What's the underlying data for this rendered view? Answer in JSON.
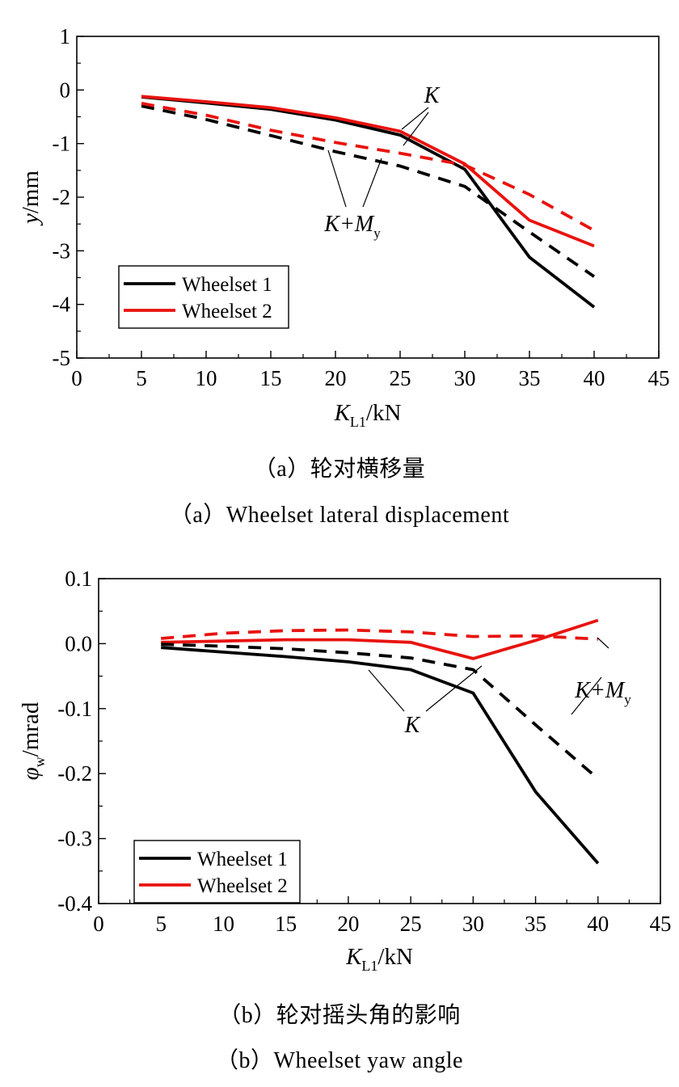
{
  "figure": {
    "captions": [
      {
        "zh": "（a）轮对横移量",
        "en": "（a）Wheelset lateral displacement"
      },
      {
        "zh": "（b）轮对摇头角的影响",
        "en": "（b）Wheelset yaw angle"
      }
    ]
  },
  "chart_data": [
    {
      "type": "line",
      "xlabel": {
        "main": "K",
        "sub": "L1",
        "unit": "/kN"
      },
      "ylabel": {
        "main": "y",
        "sub": "",
        "unit": "/mm"
      },
      "xlim": [
        0,
        45
      ],
      "ylim": [
        -5,
        1
      ],
      "xticks": [
        0,
        5,
        10,
        15,
        20,
        25,
        30,
        35,
        40,
        45
      ],
      "yticks": [
        1,
        0,
        -1,
        -2,
        -3,
        -4,
        -5
      ],
      "ytick_labels": [
        "1",
        "0",
        "-1",
        "-2",
        "-3",
        "-4",
        "-5"
      ],
      "grid": false,
      "legend_position": "bottom-left",
      "legend": [
        {
          "label": "Wheelset 1",
          "color": "#000000"
        },
        {
          "label": "Wheelset 2",
          "color": "#e8130f"
        }
      ],
      "x": [
        5,
        10,
        15,
        20,
        25,
        30,
        35,
        40
      ],
      "series": [
        {
          "wheelset": 1,
          "case": "K",
          "dashed": false,
          "color": "#000000",
          "values": [
            -0.13,
            -0.24,
            -0.36,
            -0.56,
            -0.84,
            -1.48,
            -3.12,
            -4.05
          ]
        },
        {
          "wheelset": 2,
          "case": "K",
          "dashed": false,
          "color": "#e8130f",
          "values": [
            -0.12,
            -0.22,
            -0.33,
            -0.52,
            -0.77,
            -1.38,
            -2.43,
            -2.91
          ]
        },
        {
          "wheelset": 1,
          "case": "K+My",
          "dashed": true,
          "color": "#000000",
          "values": [
            -0.3,
            -0.55,
            -0.85,
            -1.15,
            -1.42,
            -1.8,
            -2.65,
            -3.48
          ]
        },
        {
          "wheelset": 2,
          "case": "K+My",
          "dashed": true,
          "color": "#e8130f",
          "values": [
            -0.25,
            -0.47,
            -0.75,
            -0.98,
            -1.18,
            -1.4,
            -1.95,
            -2.62
          ]
        }
      ],
      "annotations": [
        {
          "main": "K",
          "sub": ""
        },
        {
          "main": "K+M",
          "sub": "y"
        }
      ]
    },
    {
      "type": "line",
      "xlabel": {
        "main": "K",
        "sub": "L1",
        "unit": "/kN"
      },
      "ylabel": {
        "main": "φ",
        "sub": "w",
        "unit": "/mrad"
      },
      "xlim": [
        0,
        45
      ],
      "ylim": [
        -0.4,
        0.1
      ],
      "xticks": [
        0,
        5,
        10,
        15,
        20,
        25,
        30,
        35,
        40,
        45
      ],
      "yticks": [
        0.1,
        0.0,
        -0.1,
        -0.2,
        -0.3,
        -0.4
      ],
      "ytick_labels": [
        "0.1",
        "0.0",
        "-0.1",
        "-0.2",
        "-0.3",
        "-0.4"
      ],
      "grid": false,
      "legend_position": "bottom-left",
      "legend": [
        {
          "label": "Wheelset 1",
          "color": "#000000"
        },
        {
          "label": "Wheelset 2",
          "color": "#e8130f"
        }
      ],
      "x": [
        5,
        10,
        15,
        20,
        25,
        30,
        35,
        40
      ],
      "series": [
        {
          "wheelset": 1,
          "case": "K",
          "dashed": false,
          "color": "#000000",
          "values": [
            -0.006,
            -0.013,
            -0.02,
            -0.028,
            -0.04,
            -0.076,
            -0.228,
            -0.338
          ]
        },
        {
          "wheelset": 2,
          "case": "K",
          "dashed": false,
          "color": "#e8130f",
          "values": [
            0.002,
            0.004,
            0.006,
            0.006,
            0.002,
            -0.023,
            0.005,
            0.036
          ]
        },
        {
          "wheelset": 1,
          "case": "K+My",
          "dashed": true,
          "color": "#000000",
          "values": [
            -0.001,
            -0.004,
            -0.008,
            -0.014,
            -0.022,
            -0.04,
            -0.125,
            -0.208
          ]
        },
        {
          "wheelset": 2,
          "case": "K+My",
          "dashed": true,
          "color": "#e8130f",
          "values": [
            0.008,
            0.016,
            0.02,
            0.021,
            0.018,
            0.011,
            0.012,
            0.007
          ]
        }
      ],
      "annotations": [
        {
          "main": "K",
          "sub": ""
        },
        {
          "main": "K+M",
          "sub": "y"
        }
      ]
    }
  ]
}
